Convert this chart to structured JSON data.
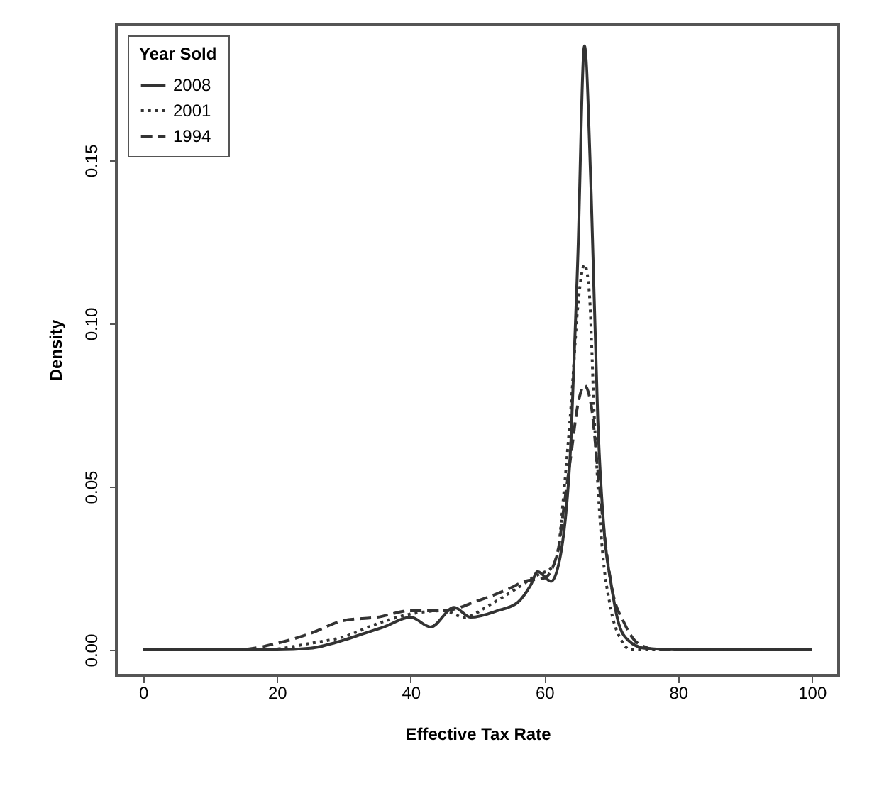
{
  "chart_data": {
    "type": "line",
    "xlabel": "Effective Tax Rate",
    "ylabel": "Density",
    "legend_title": "Year Sold",
    "legend": "top left",
    "grid": false,
    "xlim": [
      -4,
      104
    ],
    "ylim": [
      -0.0078,
      0.1917
    ],
    "xticks": [
      0,
      20,
      40,
      60,
      80,
      100
    ],
    "yticks": [
      {
        "value": 0,
        "label": "0.00"
      },
      {
        "value": 0.05,
        "label": "0.05"
      },
      {
        "value": 0.1,
        "label": "0.10"
      },
      {
        "value": 0.15,
        "label": "0.15"
      }
    ],
    "series": [
      {
        "name": "2008",
        "color": "#333333",
        "line_style": "solid",
        "x": [
          0,
          20,
          25,
          30,
          33,
          36,
          40,
          43,
          46.5,
          49,
          53,
          56,
          58,
          59,
          61,
          62.5,
          64,
          65,
          66,
          67,
          68,
          69,
          70,
          71,
          72.5,
          75,
          80,
          100
        ],
        "values": [
          0,
          0,
          0.0005,
          0.003,
          0.005,
          0.007,
          0.01,
          0.007,
          0.013,
          0.01,
          0.012,
          0.0145,
          0.02,
          0.024,
          0.021,
          0.03,
          0.065,
          0.12,
          0.185,
          0.14,
          0.07,
          0.035,
          0.02,
          0.009,
          0.003,
          0.0005,
          0,
          0
        ]
      },
      {
        "name": "2001",
        "color": "#333333",
        "line_style": "dotted",
        "x": [
          0,
          18,
          25,
          30,
          35,
          40,
          45,
          48,
          52,
          56,
          59,
          61,
          62,
          63,
          64,
          65,
          66,
          66.7,
          67.5,
          68.5,
          70,
          71.5,
          73,
          80,
          100
        ],
        "values": [
          0,
          0,
          0.002,
          0.004,
          0.008,
          0.011,
          0.012,
          0.01,
          0.014,
          0.019,
          0.023,
          0.025,
          0.03,
          0.05,
          0.075,
          0.105,
          0.118,
          0.11,
          0.07,
          0.035,
          0.012,
          0.003,
          0,
          0,
          0
        ]
      },
      {
        "name": "1994",
        "color": "#333333",
        "line_style": "dashed",
        "x": [
          0,
          14,
          20,
          25,
          30,
          35,
          40,
          45,
          50,
          55,
          57,
          60,
          62,
          63,
          64,
          65,
          66,
          67,
          68,
          69,
          70,
          72,
          74,
          77,
          100
        ],
        "values": [
          0,
          0,
          0.002,
          0.005,
          0.009,
          0.01,
          0.012,
          0.012,
          0.015,
          0.019,
          0.021,
          0.022,
          0.03,
          0.045,
          0.06,
          0.075,
          0.081,
          0.075,
          0.055,
          0.035,
          0.02,
          0.008,
          0.002,
          0,
          0
        ]
      }
    ]
  }
}
